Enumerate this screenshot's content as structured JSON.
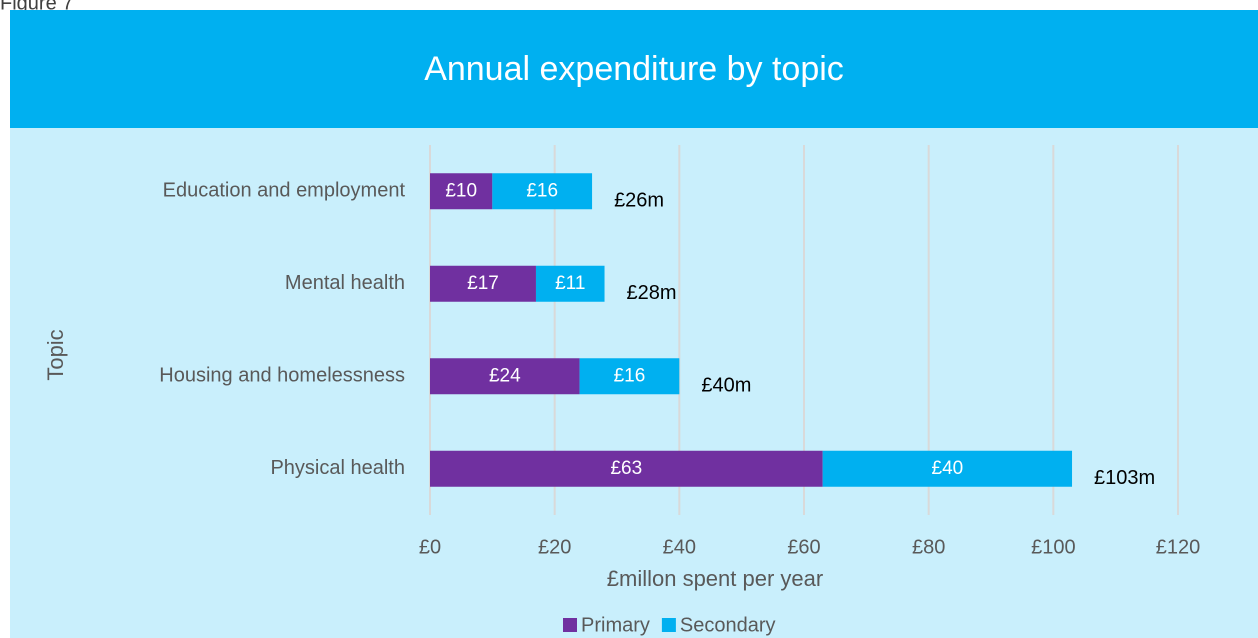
{
  "figure_label": "Figure 7",
  "chart_data": {
    "type": "bar",
    "orientation": "horizontal",
    "stacked": true,
    "title": "Annual expenditure by topic",
    "x_label": "£millon spent per year",
    "y_label": "Topic",
    "categories": [
      "Education and employment",
      "Mental health",
      "Housing and homelessness",
      "Physical health"
    ],
    "series": [
      {
        "name": "Primary",
        "color": "#7030a0",
        "values": [
          10,
          17,
          24,
          63
        ],
        "value_labels": [
          "£10",
          "£17",
          "£24",
          "£63"
        ]
      },
      {
        "name": "Secondary",
        "color": "#00b0f0",
        "values": [
          16,
          11,
          16,
          40
        ],
        "value_labels": [
          "£16",
          "£11",
          "£16",
          "£40"
        ]
      }
    ],
    "totals": {
      "values": [
        26,
        28,
        40,
        103
      ],
      "value_labels": [
        "£26m",
        "£28m",
        "£40m",
        "£103m"
      ]
    },
    "xlim": [
      0,
      120
    ],
    "xticks": [
      {
        "value": 0,
        "label": "£0"
      },
      {
        "value": 20,
        "label": "£20"
      },
      {
        "value": 40,
        "label": "£40"
      },
      {
        "value": 60,
        "label": "£60"
      },
      {
        "value": 80,
        "label": "£80"
      },
      {
        "value": 100,
        "label": "£100"
      },
      {
        "value": 120,
        "label": "£120"
      }
    ],
    "grid": true,
    "legend": "bottom"
  }
}
